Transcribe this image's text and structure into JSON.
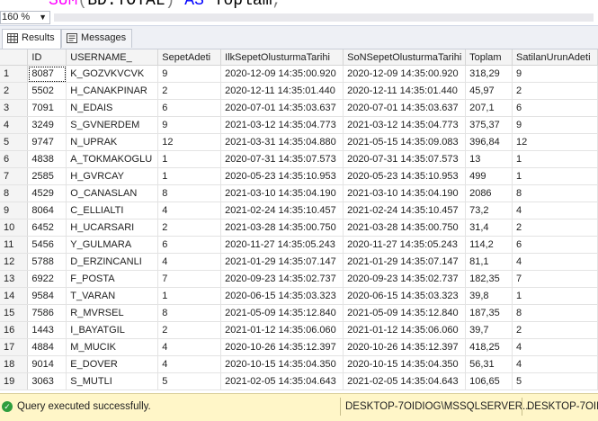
{
  "editor": {
    "fn": "SUM",
    "paren_open": "(",
    "arg": "BD.TOTAL",
    "paren_close": ")",
    "as_kw": "AS",
    "alias": "Toplam",
    "comma": ","
  },
  "zoom": {
    "value": "160 %"
  },
  "tabs": [
    {
      "label": "Results",
      "icon": "grid-icon",
      "active": true
    },
    {
      "label": "Messages",
      "icon": "messages-icon",
      "active": false
    }
  ],
  "grid": {
    "columns": [
      "ID",
      "USERNAME_",
      "SepetAdeti",
      "IlkSepetOlusturmaTarihi",
      "SoNSepetOlusturmaTarihi",
      "Toplam",
      "SatilanUrunAdeti"
    ],
    "rows": [
      [
        "1",
        "8087",
        "K_GOZVKVCVK",
        "9",
        "2020-12-09 14:35:00.920",
        "2020-12-09 14:35:00.920",
        "318,29",
        "9"
      ],
      [
        "2",
        "5502",
        "H_CANAKPINAR",
        "2",
        "2020-12-11 14:35:01.440",
        "2020-12-11 14:35:01.440",
        "45,97",
        "2"
      ],
      [
        "3",
        "7091",
        "N_EDAIS",
        "6",
        "2020-07-01 14:35:03.637",
        "2020-07-01 14:35:03.637",
        "207,1",
        "6"
      ],
      [
        "4",
        "3249",
        "S_GVNERDEM",
        "9",
        "2021-03-12 14:35:04.773",
        "2021-03-12 14:35:04.773",
        "375,37",
        "9"
      ],
      [
        "5",
        "9747",
        "N_UPRAK",
        "12",
        "2021-03-31 14:35:04.880",
        "2021-05-15 14:35:09.083",
        "396,84",
        "12"
      ],
      [
        "6",
        "4838",
        "A_TOKMAKOGLU",
        "1",
        "2020-07-31 14:35:07.573",
        "2020-07-31 14:35:07.573",
        "13",
        "1"
      ],
      [
        "7",
        "2585",
        "H_GVRCAY",
        "1",
        "2020-05-23 14:35:10.953",
        "2020-05-23 14:35:10.953",
        "499",
        "1"
      ],
      [
        "8",
        "4529",
        "O_CANASLAN",
        "8",
        "2021-03-10 14:35:04.190",
        "2021-03-10 14:35:04.190",
        "2086",
        "8"
      ],
      [
        "9",
        "8064",
        "C_ELLIALTI",
        "4",
        "2021-02-24 14:35:10.457",
        "2021-02-24 14:35:10.457",
        "73,2",
        "4"
      ],
      [
        "10",
        "6452",
        "H_UCARSARI",
        "2",
        "2021-03-28 14:35:00.750",
        "2021-03-28 14:35:00.750",
        "31,4",
        "2"
      ],
      [
        "11",
        "5456",
        "Y_GULMARA",
        "6",
        "2020-11-27 14:35:05.243",
        "2020-11-27 14:35:05.243",
        "114,2",
        "6"
      ],
      [
        "12",
        "5788",
        "D_ERZINCANLI",
        "4",
        "2021-01-29 14:35:07.147",
        "2021-01-29 14:35:07.147",
        "81,1",
        "4"
      ],
      [
        "13",
        "6922",
        "F_POSTA",
        "7",
        "2020-09-23 14:35:02.737",
        "2020-09-23 14:35:02.737",
        "182,35",
        "7"
      ],
      [
        "14",
        "9584",
        "T_VARAN",
        "1",
        "2020-06-15 14:35:03.323",
        "2020-06-15 14:35:03.323",
        "39,8",
        "1"
      ],
      [
        "15",
        "7586",
        "R_MVRSEL",
        "8",
        "2021-05-09 14:35:12.840",
        "2021-05-09 14:35:12.840",
        "187,35",
        "8"
      ],
      [
        "16",
        "1443",
        "I_BAYATGIL",
        "2",
        "2021-01-12 14:35:06.060",
        "2021-01-12 14:35:06.060",
        "39,7",
        "2"
      ],
      [
        "17",
        "4884",
        "M_MUCIK",
        "4",
        "2020-10-26 14:35:12.397",
        "2020-10-26 14:35:12.397",
        "418,25",
        "4"
      ],
      [
        "18",
        "9014",
        "E_DOVER",
        "4",
        "2020-10-15 14:35:04.350",
        "2020-10-15 14:35:04.350",
        "56,31",
        "4"
      ],
      [
        "19",
        "3063",
        "S_MUTLI",
        "5",
        "2021-02-05 14:35:04.643",
        "2021-02-05 14:35:04.643",
        "106,65",
        "5"
      ]
    ]
  },
  "status": {
    "message": "Query executed successfully.",
    "server": "DESKTOP-7OIDIOG\\MSSQLSERVER...",
    "server2": "DESKTOP-7OID",
    "ok_icon": "check-circle-icon",
    "ok_color": "#2e9e3e"
  }
}
